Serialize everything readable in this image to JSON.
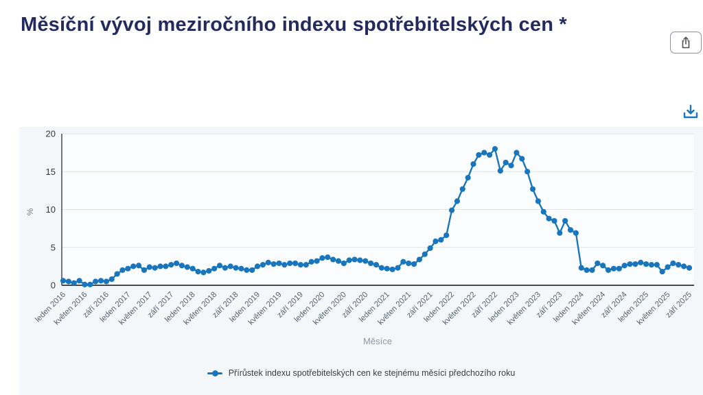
{
  "header": {
    "title": "Měsíční vývoj meziročního indexu spotřebitelských cen *"
  },
  "toolbar": {
    "share_icon": "share",
    "download_icon": "download",
    "accent_color": "#1a73c2"
  },
  "chart_data": {
    "type": "line",
    "title": "Měsíční vývoj meziročního indexu spotřebitelských cen *",
    "xlabel": "Měsíce",
    "ylabel": "%",
    "ylim": [
      0,
      20
    ],
    "yticks": [
      0,
      5,
      10,
      15,
      20
    ],
    "grid": true,
    "legend_position": "bottom",
    "x_tick_every": 4,
    "x_tick_labels": [
      "leden 2016",
      "květen 2016",
      "září 2016",
      "leden 2017",
      "květen 2017",
      "září 2017",
      "leden 2018",
      "květen 2018",
      "září 2018",
      "leden 2019",
      "květen 2019",
      "září 2019",
      "leden 2020",
      "květen 2020",
      "září 2020",
      "leden 2021",
      "květen 2021",
      "září 2021",
      "leden 2022",
      "květen 2022",
      "září 2022",
      "leden 2023",
      "květen 2023",
      "září 2023",
      "leden 2024",
      "květen 2024",
      "září 2024",
      "leden 2025",
      "květen 2025",
      "září 2025"
    ],
    "series": [
      {
        "name": "Přírůstek indexu spotřebitelských cen ke stejnému měsíci předchozího roku",
        "color": "#1a76bc",
        "x_start": "leden 2016",
        "x_end": "září 2025",
        "values": [
          0.6,
          0.5,
          0.3,
          0.6,
          0.1,
          0.1,
          0.5,
          0.6,
          0.5,
          0.8,
          1.5,
          2.0,
          2.2,
          2.5,
          2.6,
          2.0,
          2.4,
          2.3,
          2.5,
          2.5,
          2.7,
          2.9,
          2.6,
          2.4,
          2.2,
          1.8,
          1.7,
          1.9,
          2.2,
          2.6,
          2.3,
          2.5,
          2.3,
          2.2,
          2.0,
          2.0,
          2.5,
          2.7,
          3.0,
          2.8,
          2.9,
          2.7,
          2.9,
          2.9,
          2.7,
          2.7,
          3.1,
          3.2,
          3.6,
          3.7,
          3.4,
          3.2,
          2.9,
          3.3,
          3.4,
          3.3,
          3.2,
          2.9,
          2.7,
          2.3,
          2.2,
          2.1,
          2.3,
          3.1,
          2.9,
          2.8,
          3.4,
          4.1,
          4.9,
          5.8,
          6.0,
          6.6,
          9.9,
          11.1,
          12.7,
          14.2,
          16.0,
          17.2,
          17.5,
          17.2,
          18.0,
          15.1,
          16.2,
          15.8,
          17.5,
          16.7,
          15.0,
          12.7,
          11.1,
          9.7,
          8.8,
          8.5,
          6.9,
          8.5,
          7.3,
          6.9,
          2.3,
          2.0,
          2.0,
          2.9,
          2.6,
          2.0,
          2.2,
          2.2,
          2.6,
          2.8,
          2.8,
          3.0,
          2.8,
          2.7,
          2.7,
          1.8,
          2.4,
          2.9,
          2.7,
          2.5,
          2.3
        ]
      }
    ]
  }
}
